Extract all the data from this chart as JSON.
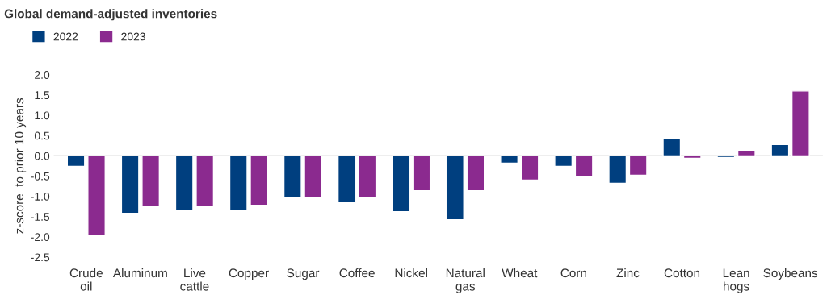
{
  "chart_data": {
    "type": "bar",
    "title": "Global demand-adjusted inventories",
    "ylabel": "z-score  to prior 10 years",
    "categories": [
      "Crude\noil",
      "Aluminum",
      "Live\ncattle",
      "Copper",
      "Sugar",
      "Coffee",
      "Nickel",
      "Natural\ngas",
      "Wheat",
      "Corn",
      "Zinc",
      "Cotton",
      "Lean\nhogs",
      "Soybeans"
    ],
    "series": [
      {
        "name": "2022",
        "color": "#003f7f",
        "values": [
          -0.26,
          -1.42,
          -1.36,
          -1.34,
          -1.04,
          -1.16,
          -1.38,
          -1.58,
          -0.18,
          -0.26,
          -0.68,
          0.42,
          -0.04,
          0.28
        ]
      },
      {
        "name": "2023",
        "color": "#8b2a8f",
        "values": [
          -1.96,
          -1.24,
          -1.24,
          -1.22,
          -1.04,
          -1.02,
          -0.86,
          -0.86,
          -0.6,
          -0.52,
          -0.48,
          -0.06,
          0.14,
          1.6
        ]
      }
    ],
    "ylim": [
      -2.5,
      2.0
    ],
    "yticks": [
      {
        "value": 2.0,
        "label": "2.0"
      },
      {
        "value": 1.5,
        "label": "1.5"
      },
      {
        "value": 1.0,
        "label": "1.0"
      },
      {
        "value": 0.5,
        "label": "0.5"
      },
      {
        "value": 0.0,
        "label": "0.0"
      },
      {
        "value": -0.5,
        "label": "-0.5"
      },
      {
        "value": -1.0,
        "label": "-1.0"
      },
      {
        "value": -1.5,
        "label": "-1.5"
      },
      {
        "value": -2.0,
        "label": "-2.0"
      },
      {
        "value": -2.5,
        "label": "-2.5"
      }
    ],
    "ref_lines": [
      {
        "axis": "y",
        "value": 0,
        "color": "#bbbbbb"
      }
    ],
    "grid": false,
    "legend": "top left"
  }
}
